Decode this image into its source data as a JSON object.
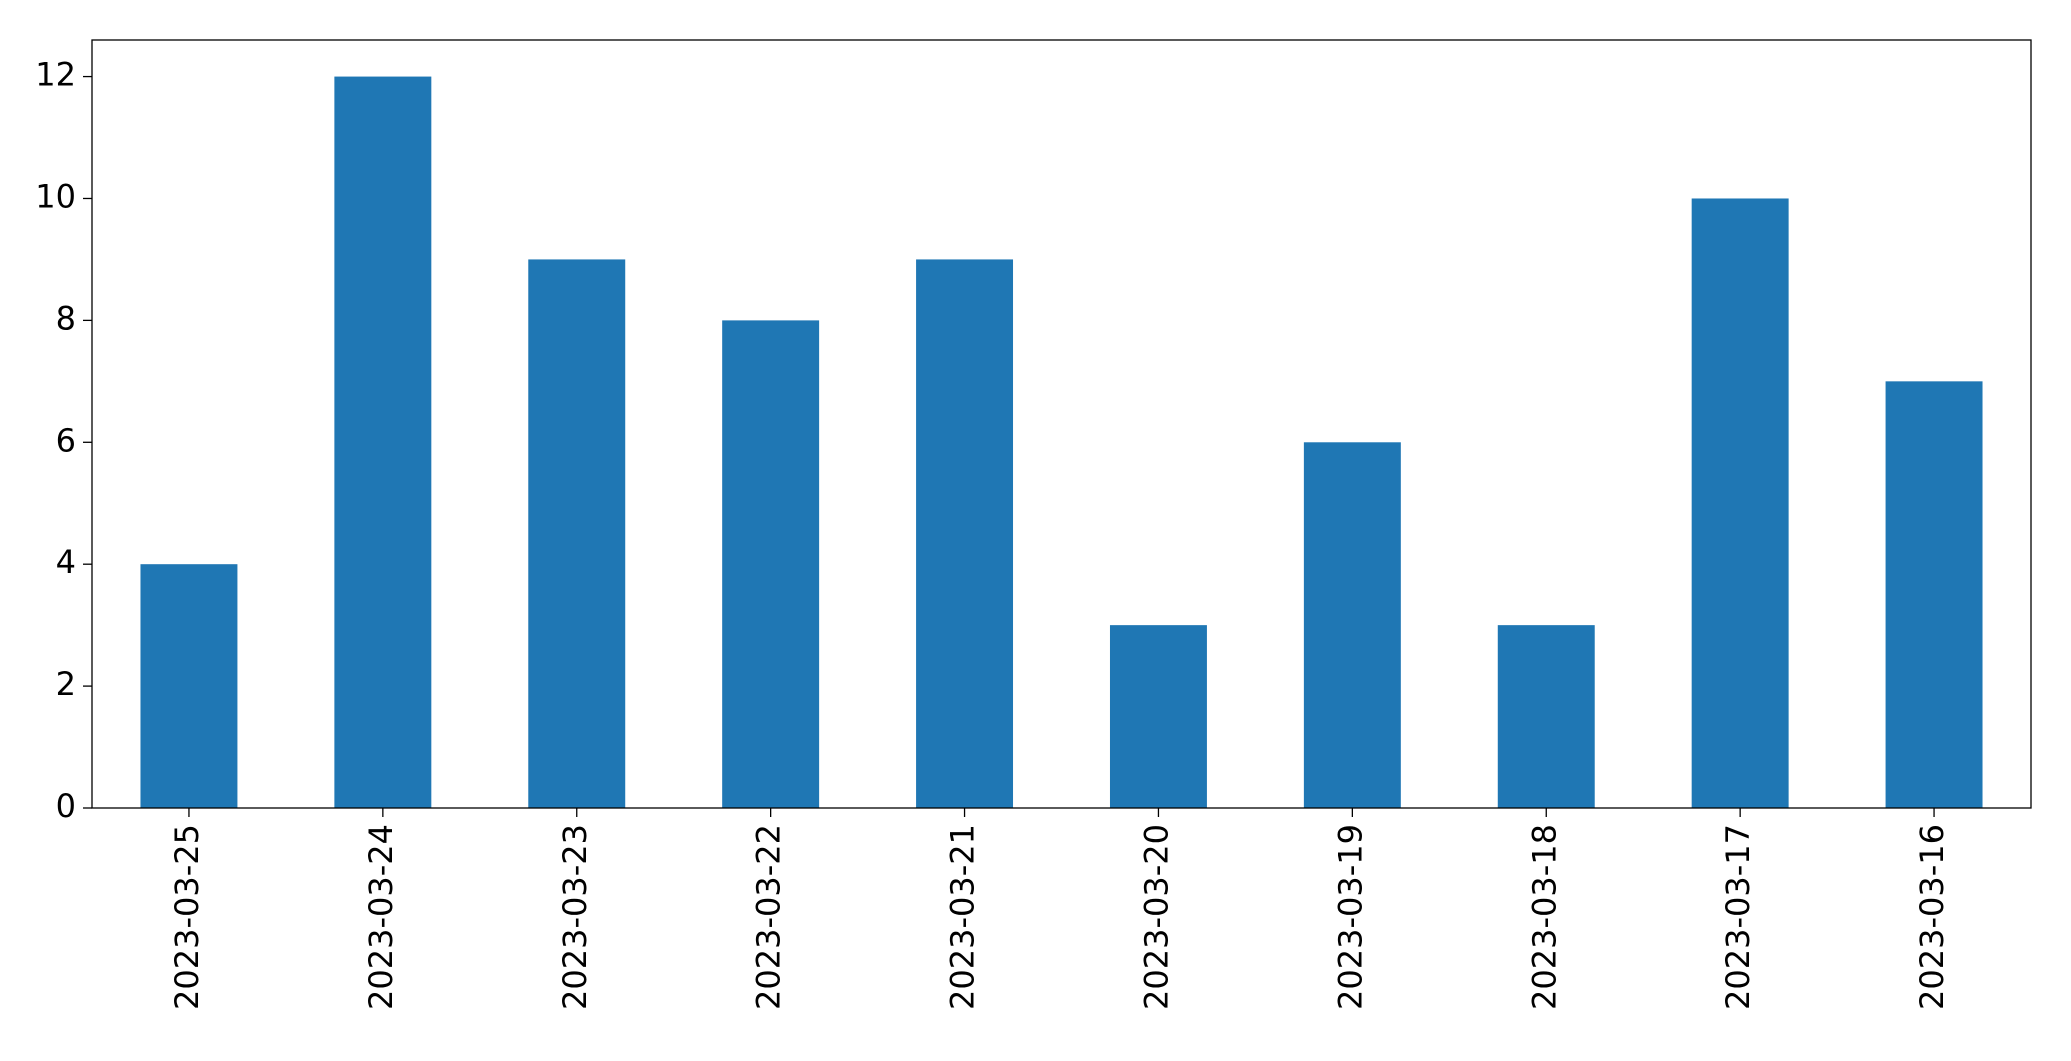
{
  "chart_data": {
    "type": "bar",
    "categories": [
      "2023-03-25",
      "2023-03-24",
      "2023-03-23",
      "2023-03-22",
      "2023-03-21",
      "2023-03-20",
      "2023-03-19",
      "2023-03-18",
      "2023-03-17",
      "2023-03-16"
    ],
    "values": [
      4,
      12,
      9,
      8,
      9,
      3,
      6,
      3,
      10,
      7
    ],
    "color": "#1f77b4",
    "ylim": [
      0,
      12.6
    ],
    "yticks": [
      0,
      2,
      4,
      6,
      8,
      10,
      12
    ],
    "grid": false
  }
}
